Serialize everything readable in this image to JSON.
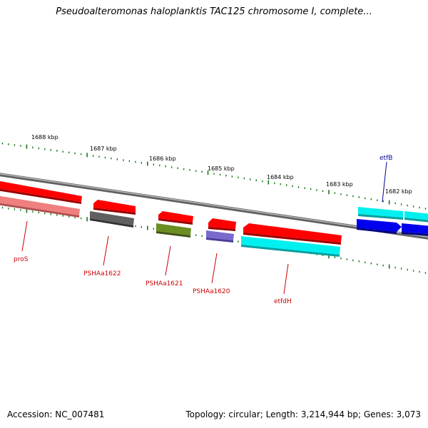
{
  "title": "Pseudoalteromonas haloplanktis TAC125 chromosome I, complete...",
  "footer": {
    "accession": "Accession: NC_007481",
    "summary": "Topology: circular; Length: 3,214,944 bp; Genes: 3,073"
  },
  "colors": {
    "backbone": "#808080",
    "tick": "#1a7a1a",
    "label_reverse": "#cc0000",
    "label_forward": "#000099"
  },
  "position_markers": [
    "1688 kbp",
    "1687 kbp",
    "1686 kbp",
    "1685 kbp",
    "1684 kbp",
    "1683 kbp",
    "1682 kbp"
  ],
  "genes": [
    {
      "label": "proS",
      "strand": "reverse",
      "color": "#ff0000"
    },
    {
      "label": "PSHAa1622",
      "strand": "reverse",
      "color": "#ff0000"
    },
    {
      "label": "PSHAa1621",
      "strand": "reverse",
      "color": "#ff0000"
    },
    {
      "label": "PSHAa1620",
      "strand": "reverse",
      "color": "#ff0000"
    },
    {
      "label": "etfdH",
      "strand": "reverse",
      "color": "#ff0000"
    },
    {
      "label": "etfB",
      "strand": "forward",
      "color": "#0000ee"
    }
  ]
}
